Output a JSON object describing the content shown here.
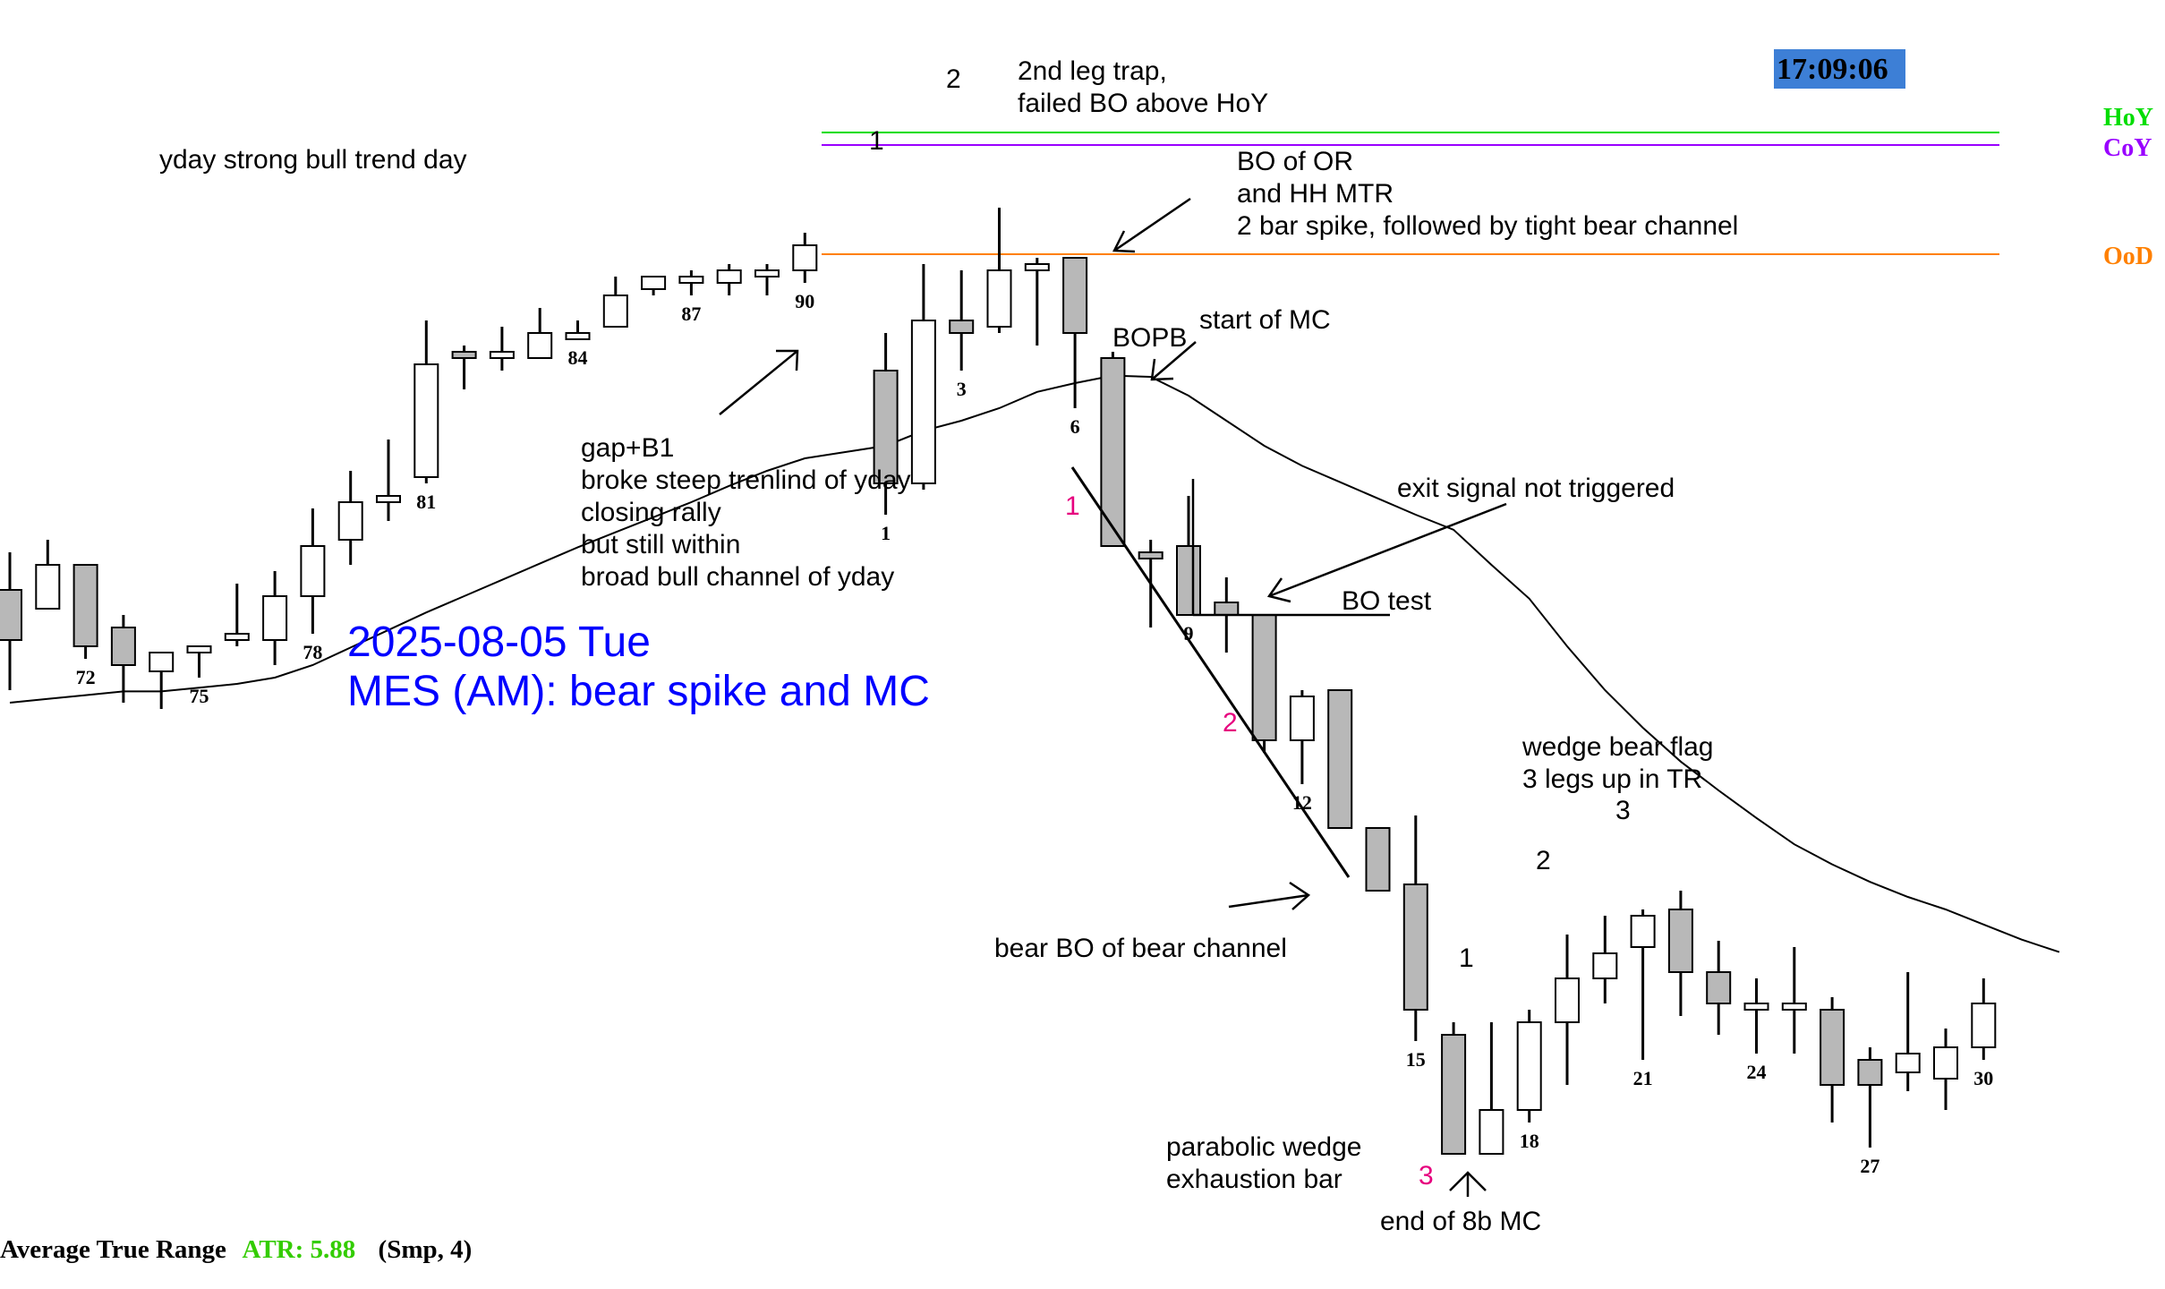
{
  "chart_data": {
    "type": "candlestick",
    "title": "2025-08-05 Tue",
    "subtitle": "MES (AM): bear spike and MC",
    "clock": "17:09:06",
    "levels": [
      {
        "name": "HoY",
        "price": 6385,
        "color": "#00dd00"
      },
      {
        "name": "CoY",
        "price": 6383,
        "color": "#9900ff"
      },
      {
        "name": "OoD",
        "price": 6373,
        "color": "#ff8000"
      }
    ],
    "previous_day": [
      {
        "o": 6355.5,
        "h": 6358.5,
        "l": 6347.5,
        "c": 6351.5
      },
      {
        "o": 6354.0,
        "h": 6359.5,
        "l": 6354.0,
        "c": 6357.5
      },
      {
        "o": 6357.5,
        "h": 6357.5,
        "l": 6350.0,
        "c": 6351.0,
        "label": "72"
      },
      {
        "o": 6352.5,
        "h": 6353.5,
        "l": 6346.5,
        "c": 6349.5
      },
      {
        "o": 6349.0,
        "h": 6350.5,
        "l": 6346.0,
        "c": 6350.5
      },
      {
        "o": 6350.5,
        "h": 6351.0,
        "l": 6348.5,
        "c": 6351.0,
        "label": "75"
      },
      {
        "o": 6351.5,
        "h": 6356.0,
        "l": 6351.0,
        "c": 6352.0
      },
      {
        "o": 6351.5,
        "h": 6357.0,
        "l": 6349.5,
        "c": 6355.0
      },
      {
        "o": 6355.0,
        "h": 6362.0,
        "l": 6352.0,
        "c": 6359.0,
        "label": "78"
      },
      {
        "o": 6359.5,
        "h": 6365.0,
        "l": 6357.5,
        "c": 6362.5
      },
      {
        "o": 6362.5,
        "h": 6367.5,
        "l": 6361.0,
        "c": 6363.0
      },
      {
        "o": 6364.5,
        "h": 6377.0,
        "l": 6364.0,
        "c": 6373.5,
        "label": "81"
      },
      {
        "o": 6374.5,
        "h": 6375.0,
        "l": 6371.5,
        "c": 6374.0
      },
      {
        "o": 6374.5,
        "h": 6376.5,
        "l": 6373.0,
        "c": 6374.5
      },
      {
        "o": 6374.0,
        "h": 6378.0,
        "l": 6374.0,
        "c": 6376.0
      },
      {
        "o": 6376.0,
        "h": 6377.0,
        "l": 6375.5,
        "c": 6376.0,
        "label": "84"
      },
      {
        "o": 6376.5,
        "h": 6380.5,
        "l": 6376.5,
        "c": 6379.0
      },
      {
        "o": 6379.5,
        "h": 6380.5,
        "l": 6379.0,
        "c": 6380.5
      },
      {
        "o": 6380.0,
        "h": 6381.0,
        "l": 6379.0,
        "c": 6380.5,
        "label": "87"
      },
      {
        "o": 6380.0,
        "h": 6381.5,
        "l": 6379.0,
        "c": 6381.0
      },
      {
        "o": 6381.0,
        "h": 6381.5,
        "l": 6379.0,
        "c": 6381.0
      },
      {
        "o": 6381.0,
        "h": 6384.0,
        "l": 6380.0,
        "c": 6383.0,
        "label": "90"
      }
    ],
    "today": [
      {
        "o": 6373.0,
        "h": 6376.0,
        "l": 6361.5,
        "c": 6364.0,
        "label": "1"
      },
      {
        "o": 6364.0,
        "h": 6381.5,
        "l": 6363.5,
        "c": 6377.0
      },
      {
        "o": 6377.0,
        "h": 6381.0,
        "l": 6373.0,
        "c": 6376.0,
        "label": "3"
      },
      {
        "o": 6376.5,
        "h": 6386.0,
        "l": 6376.0,
        "c": 6381.0
      },
      {
        "o": 6381.0,
        "h": 6382.0,
        "l": 6375.0,
        "c": 6381.5
      },
      {
        "o": 6382.0,
        "h": 6382.0,
        "l": 6370.0,
        "c": 6376.0,
        "label": "6"
      },
      {
        "o": 6374.0,
        "h": 6374.5,
        "l": 6359.0,
        "c": 6359.0
      },
      {
        "o": 6358.5,
        "h": 6359.5,
        "l": 6352.5,
        "c": 6358.0
      },
      {
        "o": 6359.0,
        "h": 6363.0,
        "l": 6353.5,
        "c": 6353.5,
        "label": "9"
      },
      {
        "o": 6354.5,
        "h": 6356.5,
        "l": 6350.5,
        "c": 6353.5
      },
      {
        "o": 6353.5,
        "h": 6353.5,
        "l": 6342.5,
        "c": 6343.5
      },
      {
        "o": 6343.5,
        "h": 6347.5,
        "l": 6340.0,
        "c": 6347.0,
        "label": "12"
      },
      {
        "o": 6347.5,
        "h": 6347.5,
        "l": 6336.5,
        "c": 6336.5
      },
      {
        "o": 6336.5,
        "h": 6336.5,
        "l": 6331.5,
        "c": 6331.5
      },
      {
        "o": 6332.0,
        "h": 6337.5,
        "l": 6319.5,
        "c": 6322.0,
        "label": "15"
      },
      {
        "o": 6320.0,
        "h": 6321.0,
        "l": 6310.5,
        "c": 6310.5
      },
      {
        "o": 6310.5,
        "h": 6321.0,
        "l": 6310.5,
        "c": 6314.0
      },
      {
        "o": 6314.0,
        "h": 6322.0,
        "l": 6313.0,
        "c": 6321.0,
        "label": "18"
      },
      {
        "o": 6321.0,
        "h": 6328.0,
        "l": 6316.0,
        "c": 6324.5
      },
      {
        "o": 6324.5,
        "h": 6329.5,
        "l": 6322.5,
        "c": 6326.5
      },
      {
        "o": 6327.0,
        "h": 6330.0,
        "l": 6318.0,
        "c": 6329.5,
        "label": "21"
      },
      {
        "o": 6330.0,
        "h": 6331.5,
        "l": 6321.5,
        "c": 6325.0
      },
      {
        "o": 6325.0,
        "h": 6327.5,
        "l": 6320.0,
        "c": 6322.5
      },
      {
        "o": 6322.5,
        "h": 6324.5,
        "l": 6318.5,
        "c": 6322.5,
        "label": "24"
      },
      {
        "o": 6322.5,
        "h": 6327.0,
        "l": 6318.5,
        "c": 6322.5
      },
      {
        "o": 6322.0,
        "h": 6323.0,
        "l": 6313.0,
        "c": 6316.0
      },
      {
        "o": 6318.0,
        "h": 6319.0,
        "l": 6311.0,
        "c": 6316.0,
        "label": "27"
      },
      {
        "o": 6317.0,
        "h": 6325.0,
        "l": 6315.5,
        "c": 6318.5
      },
      {
        "o": 6316.5,
        "h": 6320.5,
        "l": 6314.0,
        "c": 6319.0
      },
      {
        "o": 6319.0,
        "h": 6324.5,
        "l": 6318.0,
        "c": 6322.5,
        "label": "30"
      }
    ],
    "ema": [
      6346.5,
      6346.8,
      6347.1,
      6347.4,
      6347.4,
      6347.7,
      6348.0,
      6348.5,
      6349.5,
      6350.9,
      6352.3,
      6353.7,
      6355.0,
      6356.3,
      6357.6,
      6358.9,
      6360.1,
      6361.3,
      6362.5,
      6363.8,
      6365.0,
      6366.0,
      6367.0,
      6368.2,
      6369.0,
      6370.0,
      6371.3,
      6372.0,
      6372.6,
      6372.5,
      6371.0,
      6369.0,
      6367.0,
      6365.4,
      6364.1,
      6362.8,
      6361.5,
      6360.3,
      6357.5,
      6354.8,
      6351.0,
      6347.5,
      6344.5,
      6341.8,
      6339.5,
      6337.3,
      6335.2,
      6333.6,
      6332.2,
      6331.0,
      6330.0,
      6328.8,
      6327.6,
      6326.6
    ],
    "atr": {
      "label": "Average True Range",
      "value_label": "ATR: 5.88",
      "params": "(Smp, 4)"
    }
  },
  "annotations": {
    "yday": "yday strong bull trend day",
    "trap1": "2nd leg trap,",
    "trap2": "failed BO above HoY",
    "bo1": "BO of OR",
    "bo2": "and HH MTR",
    "bo3": "2 bar spike, followed by tight bear channel",
    "gap1": "gap+B1",
    "gap2": "broke steep trenlind of yday",
    "gap3": "closing rally",
    "gap4": "but still within",
    "gap5": "broad bull channel of yday",
    "bopb": "BOPB",
    "start_mc": "start of MC",
    "exit": "exit signal not triggered",
    "bo_test": "BO test",
    "bear_bo": "bear BO of bear channel",
    "wedge1": "wedge bear flag",
    "wedge2": "3 legs up in TR",
    "para1": "parabolic wedge",
    "para2": "exhaustion bar",
    "end_mc": "end of 8b MC"
  },
  "leg_labels": {
    "top1": "1",
    "top2": "2",
    "mag1": "1",
    "mag2": "2",
    "mag3": "3",
    "up1": "1",
    "up2": "2",
    "up3": "3"
  }
}
